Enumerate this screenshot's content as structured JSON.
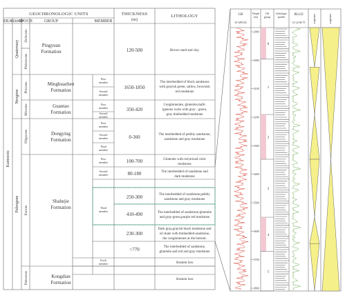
{
  "colors": {
    "line": "#666666",
    "gr_curve": "#d94a3c",
    "rlld_curve": "#6aa84f",
    "green_band": "#3aa378",
    "pink_fill": "#f2c9d3",
    "yellow_fill": "#f5f08a"
  },
  "table": {
    "header": {
      "geochronologic_units": "GEOCHRONOLOGIC UNITS",
      "era": "ERA",
      "period": "PERIOD",
      "epoch": "EPOCH",
      "group": "GROUP",
      "member": "MEMBER",
      "thickness": "THICKNESS",
      "thickness_unit": "(m)",
      "lithology": "LITHOLOGY"
    },
    "era": "Kainozoic",
    "periods": {
      "quaternary": "Quaternary",
      "neogene": "Neogene",
      "paleogene": "Paleogene"
    },
    "epochs": {
      "holocene": "Holocene",
      "pleistocene": "Pleistocene",
      "pliocene": "Pliocene",
      "miocene": "Miocene",
      "oligocene": "Oligocene",
      "eocene": "Eocene",
      "paleocene": "Paleocene"
    },
    "formations": {
      "pingyuan": [
        "Pingyuan",
        "Formation"
      ],
      "minghuazhen": [
        "Minghuazhen",
        "Formation"
      ],
      "guantao": [
        "Guantao",
        "Formation"
      ],
      "dongying": [
        "Dongying",
        "Formation"
      ],
      "shahejie": [
        "Shahejie",
        "Formation"
      ],
      "kongdian": [
        "Kongdian",
        "Formation"
      ]
    },
    "members": {
      "first": [
        "First",
        "member"
      ],
      "second": [
        "Second",
        "member"
      ],
      "third": [
        "Third",
        "member"
      ],
      "forth": [
        "Forth",
        "member"
      ]
    },
    "thickness": {
      "pingyuan": "120-500",
      "minghuazhen": "1650-1850",
      "guantao": "350-420",
      "dongying": "0-360",
      "s1": "100-700",
      "s2": "80-180",
      "s3a": "250-300",
      "s3b": "410-490",
      "s3c": "230-300",
      "s4": ">770"
    },
    "lithology": {
      "pingyuan": [
        "Brown sand and clay"
      ],
      "minghuazhen": [
        "The interbedded of block sandstone",
        "with grayish green, sallow, brownish",
        "red mudstone"
      ],
      "guantao": [
        "Conglomerate, glutenite,mafic",
        "igneous rocks with gray - green,",
        "gray thinbedded mudstone"
      ],
      "dongying": [
        "The interbedded of pebbly sandstone,",
        "sandstone and gray mudstone"
      ],
      "s1": [
        "Glutenite with red,mixed color",
        "mudstone"
      ],
      "s2": [
        "The interbedded of sandstone and",
        "dark mudstone"
      ],
      "s3a": [
        "The interbedded of sandstone,pebbly",
        "sandstone and gray mudstone"
      ],
      "s3b": [
        "The interbedded of sandstone-glutenite",
        "and gray-green,purple red mudstone"
      ],
      "s3c": [
        "Dark gray,grayish black mudstone and",
        "oil shale with thinbedded sandstone,",
        "the conglomerate at the bottom."
      ],
      "s4a": [
        "The interbedded of sandstone,",
        "glutenite and red and gray mudstone"
      ],
      "s4b": [
        "Stratum loss"
      ],
      "kongdian": [
        "Stratum loss"
      ]
    }
  },
  "log": {
    "headers": {
      "gr": "GR",
      "gr_scale": "35 API102",
      "depth": [
        "Depth",
        "(m)"
      ],
      "oil_group": [
        "Oil",
        "group"
      ],
      "lithologic_profile": [
        "Lithologic",
        "profile"
      ],
      "rlld": "RLLD",
      "rlld_scale": "0.1 Ω·M 75",
      "col6": "sequence",
      "col7": "sequence"
    },
    "depths": [
      "-2900",
      "-3000",
      "-3100",
      "-3200",
      "-3300",
      "-3400",
      "-3500",
      "-3600",
      "-3700",
      "-3800"
    ],
    "oil_groups": [
      "0",
      "1",
      "2",
      "3",
      "4",
      "5"
    ],
    "pink_groups": [
      0,
      2,
      4
    ],
    "triangles_narrow": [
      {
        "top": 0.0,
        "bottom": 0.15,
        "dir": "down"
      },
      {
        "top": 0.15,
        "bottom": 0.33,
        "dir": "down"
      },
      {
        "top": 0.33,
        "bottom": 0.5,
        "dir": "up"
      },
      {
        "top": 0.5,
        "bottom": 0.72,
        "dir": "down"
      },
      {
        "top": 0.72,
        "bottom": 0.82,
        "dir": "up"
      },
      {
        "top": 0.82,
        "bottom": 1.0,
        "dir": "down"
      }
    ],
    "triangles_wide": [
      {
        "top": 0.0,
        "bottom": 0.5,
        "dir": "down"
      },
      {
        "top": 0.5,
        "bottom": 1.0,
        "dir": "up"
      }
    ]
  }
}
